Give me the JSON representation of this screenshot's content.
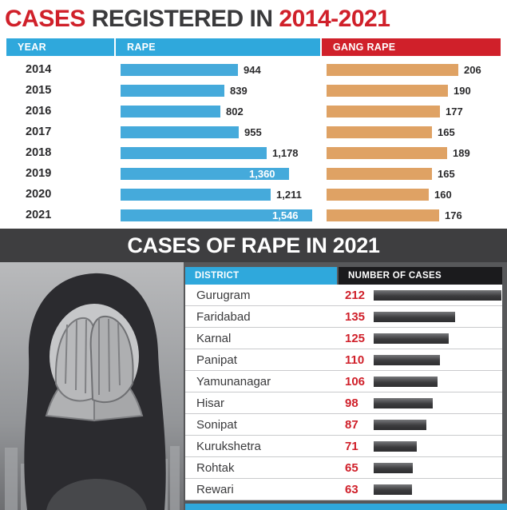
{
  "title": {
    "prefix": "CASES",
    "middle": " REGISTERED IN ",
    "suffix": "2014-2021"
  },
  "colors": {
    "red": "#d0202a",
    "header_blue": "#2fa8dc",
    "rape_bar": "#45aadb",
    "gang_rape_bar": "#dfa264",
    "dark_background": "#57585a",
    "banner_background": "#3e3e40",
    "district_bar": "#3c3c3e"
  },
  "cases_table": {
    "headers": {
      "year": "YEAR",
      "rape": "RAPE",
      "gang_rape": "GANG RAPE"
    },
    "rows": [
      {
        "year": "2014",
        "rape_label": "944",
        "gang_label": "206"
      },
      {
        "year": "2015",
        "rape_label": "839",
        "gang_label": "190"
      },
      {
        "year": "2016",
        "rape_label": "802",
        "gang_label": "177"
      },
      {
        "year": "2017",
        "rape_label": "955",
        "gang_label": "165"
      },
      {
        "year": "2018",
        "rape_label": "1,178",
        "gang_label": "189"
      },
      {
        "year": "2019",
        "rape_label": "1,360",
        "gang_label": "165"
      },
      {
        "year": "2020",
        "rape_label": "1,211",
        "gang_label": "160"
      },
      {
        "year": "2021",
        "rape_label": "1,546",
        "gang_label": "176"
      }
    ]
  },
  "rape_2021": {
    "title": "CASES OF RAPE IN 2021",
    "headers": {
      "district": "DISTRICT",
      "cases": "NUMBER OF CASES"
    },
    "rows": [
      {
        "district": "Gurugram",
        "cases": "212"
      },
      {
        "district": "Faridabad",
        "cases": "135"
      },
      {
        "district": "Karnal",
        "cases": "125"
      },
      {
        "district": "Panipat",
        "cases": "110"
      },
      {
        "district": "Yamunanagar",
        "cases": "106"
      },
      {
        "district": "Hisar",
        "cases": "98"
      },
      {
        "district": "Sonipat",
        "cases": "87"
      },
      {
        "district": "Kurukshetra",
        "cases": "71"
      },
      {
        "district": "Rohtak",
        "cases": "65"
      },
      {
        "district": "Rewari",
        "cases": "63"
      }
    ]
  },
  "chart_data": [
    {
      "type": "bar",
      "orientation": "horizontal",
      "title": "CASES REGISTERED IN 2014-2021",
      "categories": [
        "2014",
        "2015",
        "2016",
        "2017",
        "2018",
        "2019",
        "2020",
        "2021"
      ],
      "series": [
        {
          "name": "RAPE",
          "values": [
            944,
            839,
            802,
            955,
            1178,
            1360,
            1211,
            1546
          ]
        },
        {
          "name": "GANG RAPE",
          "values": [
            206,
            190,
            177,
            165,
            189,
            165,
            160,
            176
          ]
        }
      ],
      "value_labels": true,
      "xlim": [
        0,
        1546
      ]
    },
    {
      "type": "bar",
      "orientation": "horizontal",
      "title": "CASES OF RAPE IN 2021",
      "xlabel": "DISTRICT",
      "ylabel": "NUMBER OF CASES",
      "categories": [
        "Gurugram",
        "Faridabad",
        "Karnal",
        "Panipat",
        "Yamunanagar",
        "Hisar",
        "Sonipat",
        "Kurukshetra",
        "Rohtak",
        "Rewari"
      ],
      "values": [
        212,
        135,
        125,
        110,
        106,
        98,
        87,
        71,
        65,
        63
      ],
      "value_labels": true,
      "xlim": [
        0,
        212
      ]
    }
  ]
}
